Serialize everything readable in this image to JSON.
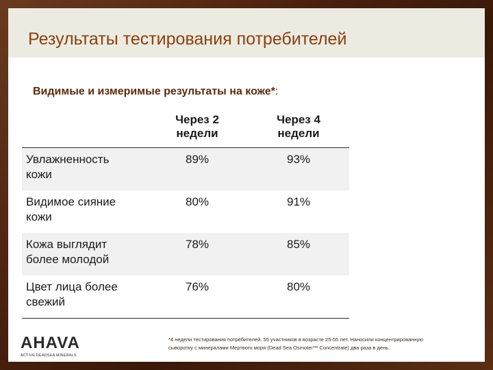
{
  "slide": {
    "title": "Результаты тестирования потребителей",
    "subtitle": "Видимые и измеримые результаты на коже*",
    "subtitle_suffix": ":"
  },
  "table": {
    "header": {
      "label": "",
      "col_a": [
        "Через 2",
        "недели"
      ],
      "col_b": [
        "Через 4",
        "недели"
      ]
    },
    "rows": [
      {
        "label": [
          "Увлажненность",
          "кожи"
        ],
        "after_2_weeks": "89%",
        "after_4_weeks": "93%"
      },
      {
        "label": [
          "Видимое сияние",
          "кожи"
        ],
        "after_2_weeks": "80%",
        "after_4_weeks": "91%"
      },
      {
        "label": [
          "Кожа выглядит",
          "более молодой"
        ],
        "after_2_weeks": "78%",
        "after_4_weeks": "85%"
      },
      {
        "label": [
          "Цвет лица более",
          "свежий"
        ],
        "after_2_weeks": "76%",
        "after_4_weeks": "80%"
      }
    ]
  },
  "logo": {
    "wordmark": "AHAVA",
    "tagline": "ACTIVE DEADSEA MINERALS"
  },
  "footnote": {
    "line1": "*4 недели тестирования потребителей. 55 участников в возрасте 25-55 лет. Наносили концентрированную",
    "line2": "сыворотку с минералами Мертвого моря (Dead Sea Osmoter™ Concentrate) два раза в день."
  }
}
